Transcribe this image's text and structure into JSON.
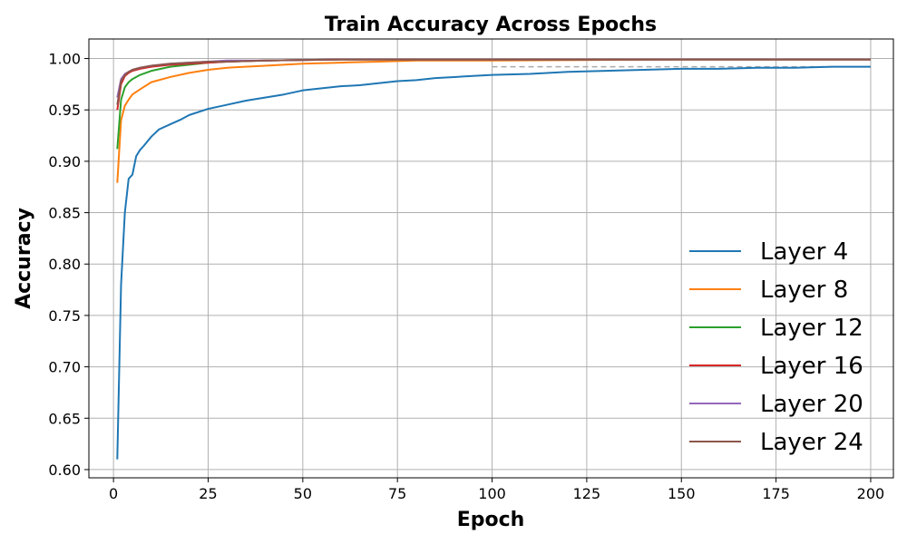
{
  "chart_data": {
    "type": "line",
    "title": "Train Accuracy Across Epochs",
    "xlabel": "Epoch",
    "ylabel": "Accuracy",
    "xlim": [
      -6.5,
      206
    ],
    "ylim": [
      0.592,
      1.019
    ],
    "xticks": [
      0,
      25,
      50,
      75,
      100,
      125,
      150,
      175,
      200
    ],
    "yticks": [
      0.6,
      0.65,
      0.7,
      0.75,
      0.8,
      0.85,
      0.9,
      0.95,
      1.0
    ],
    "grid": true,
    "legend_position": "lower-right",
    "reference_line": {
      "y": 0.992,
      "x_start": 100,
      "x_end": 200,
      "style": "dashed",
      "color": "#aaaaaa"
    },
    "series": [
      {
        "name": "Layer 4",
        "color": "#1f77b4",
        "points": [
          [
            1,
            0.61
          ],
          [
            2,
            0.78
          ],
          [
            3,
            0.85
          ],
          [
            4,
            0.883
          ],
          [
            5,
            0.887
          ],
          [
            6,
            0.905
          ],
          [
            7,
            0.911
          ],
          [
            8,
            0.915
          ],
          [
            10,
            0.924
          ],
          [
            12,
            0.931
          ],
          [
            15,
            0.936
          ],
          [
            18,
            0.941
          ],
          [
            20,
            0.945
          ],
          [
            25,
            0.951
          ],
          [
            30,
            0.955
          ],
          [
            35,
            0.959
          ],
          [
            40,
            0.962
          ],
          [
            45,
            0.965
          ],
          [
            50,
            0.969
          ],
          [
            55,
            0.971
          ],
          [
            60,
            0.973
          ],
          [
            65,
            0.974
          ],
          [
            70,
            0.976
          ],
          [
            75,
            0.978
          ],
          [
            80,
            0.979
          ],
          [
            85,
            0.981
          ],
          [
            90,
            0.982
          ],
          [
            95,
            0.983
          ],
          [
            100,
            0.984
          ],
          [
            110,
            0.985
          ],
          [
            120,
            0.987
          ],
          [
            130,
            0.988
          ],
          [
            140,
            0.989
          ],
          [
            150,
            0.99
          ],
          [
            160,
            0.99
          ],
          [
            170,
            0.991
          ],
          [
            180,
            0.991
          ],
          [
            190,
            0.992
          ],
          [
            200,
            0.992
          ]
        ]
      },
      {
        "name": "Layer 8",
        "color": "#ff7f0e",
        "points": [
          [
            1,
            0.879
          ],
          [
            2,
            0.94
          ],
          [
            3,
            0.954
          ],
          [
            4,
            0.96
          ],
          [
            5,
            0.965
          ],
          [
            7,
            0.97
          ],
          [
            10,
            0.977
          ],
          [
            15,
            0.982
          ],
          [
            20,
            0.986
          ],
          [
            25,
            0.989
          ],
          [
            30,
            0.991
          ],
          [
            40,
            0.993
          ],
          [
            50,
            0.995
          ],
          [
            60,
            0.996
          ],
          [
            70,
            0.997
          ],
          [
            80,
            0.998
          ],
          [
            100,
            0.998
          ],
          [
            150,
            0.999
          ],
          [
            200,
            0.999
          ]
        ]
      },
      {
        "name": "Layer 12",
        "color": "#2ca02c",
        "points": [
          [
            1,
            0.912
          ],
          [
            2,
            0.96
          ],
          [
            3,
            0.972
          ],
          [
            4,
            0.977
          ],
          [
            5,
            0.98
          ],
          [
            7,
            0.984
          ],
          [
            10,
            0.988
          ],
          [
            15,
            0.992
          ],
          [
            20,
            0.994
          ],
          [
            25,
            0.996
          ],
          [
            30,
            0.997
          ],
          [
            40,
            0.998
          ],
          [
            60,
            0.999
          ],
          [
            100,
            0.999
          ],
          [
            200,
            0.999
          ]
        ]
      },
      {
        "name": "Layer 16",
        "color": "#d62728",
        "points": [
          [
            1,
            0.95
          ],
          [
            2,
            0.975
          ],
          [
            3,
            0.983
          ],
          [
            4,
            0.986
          ],
          [
            5,
            0.988
          ],
          [
            7,
            0.99
          ],
          [
            10,
            0.992
          ],
          [
            15,
            0.994
          ],
          [
            20,
            0.995
          ],
          [
            25,
            0.996
          ],
          [
            30,
            0.997
          ],
          [
            40,
            0.998
          ],
          [
            60,
            0.999
          ],
          [
            100,
            0.999
          ],
          [
            200,
            0.999
          ]
        ]
      },
      {
        "name": "Layer 20",
        "color": "#9467bd",
        "points": [
          [
            1,
            0.962
          ],
          [
            2,
            0.98
          ],
          [
            3,
            0.985
          ],
          [
            4,
            0.987
          ],
          [
            5,
            0.989
          ],
          [
            7,
            0.991
          ],
          [
            10,
            0.993
          ],
          [
            15,
            0.995
          ],
          [
            20,
            0.996
          ],
          [
            25,
            0.997
          ],
          [
            30,
            0.998
          ],
          [
            40,
            0.998
          ],
          [
            60,
            0.999
          ],
          [
            100,
            0.999
          ],
          [
            200,
            0.999
          ]
        ]
      },
      {
        "name": "Layer 24",
        "color": "#8c564b",
        "points": [
          [
            1,
            0.955
          ],
          [
            2,
            0.978
          ],
          [
            3,
            0.984
          ],
          [
            4,
            0.987
          ],
          [
            5,
            0.989
          ],
          [
            7,
            0.991
          ],
          [
            10,
            0.993
          ],
          [
            15,
            0.995
          ],
          [
            20,
            0.996
          ],
          [
            25,
            0.997
          ],
          [
            30,
            0.997
          ],
          [
            40,
            0.998
          ],
          [
            60,
            0.999
          ],
          [
            100,
            0.999
          ],
          [
            200,
            0.999
          ]
        ]
      }
    ]
  }
}
